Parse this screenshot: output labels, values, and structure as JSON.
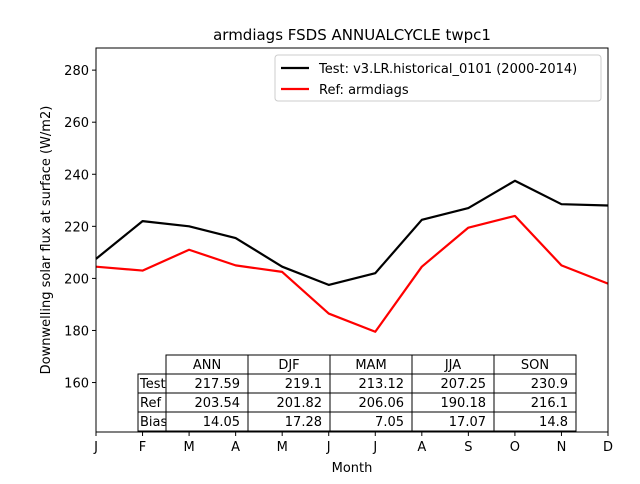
{
  "chart_data": {
    "type": "line",
    "title": "armdiags FSDS ANNUALCYCLE twpc1",
    "xlabel": "Month",
    "ylabel": "Downwelling solar flux at surface (W/m2)",
    "x_tick_labels": [
      "J",
      "F",
      "M",
      "A",
      "M",
      "J",
      "J",
      "A",
      "S",
      "O",
      "N",
      "D"
    ],
    "y_ticks": [
      160,
      180,
      200,
      220,
      240,
      260,
      280
    ],
    "xlim": [
      0,
      11
    ],
    "ylim": [
      141,
      288.5
    ],
    "grid": false,
    "legend_position": "top-right",
    "series": [
      {
        "name": "Test: v3.LR.historical_0101 (2000-2014)",
        "color": "#000000",
        "values": [
          207.5,
          222,
          220,
          215.5,
          204.5,
          197.5,
          202,
          222.5,
          227,
          237.5,
          228.5,
          228
        ]
      },
      {
        "name": "Ref: armdiags",
        "color": "#ff0000",
        "values": [
          204.5,
          203,
          211,
          205,
          202.5,
          186.5,
          179.5,
          204.5,
          219.5,
          224,
          205,
          198
        ]
      }
    ],
    "stats_table": {
      "columns": [
        "ANN",
        "DJF",
        "MAM",
        "JJA",
        "SON"
      ],
      "rows": [
        {
          "label": "Test",
          "values": [
            "217.59",
            "219.1",
            "213.12",
            "207.25",
            "230.9"
          ]
        },
        {
          "label": "Ref",
          "values": [
            "203.54",
            "201.82",
            "206.06",
            "190.18",
            "216.1"
          ]
        },
        {
          "label": "Bias",
          "values": [
            "14.05",
            "17.28",
            "7.05",
            "17.07",
            "14.8"
          ]
        }
      ]
    }
  }
}
